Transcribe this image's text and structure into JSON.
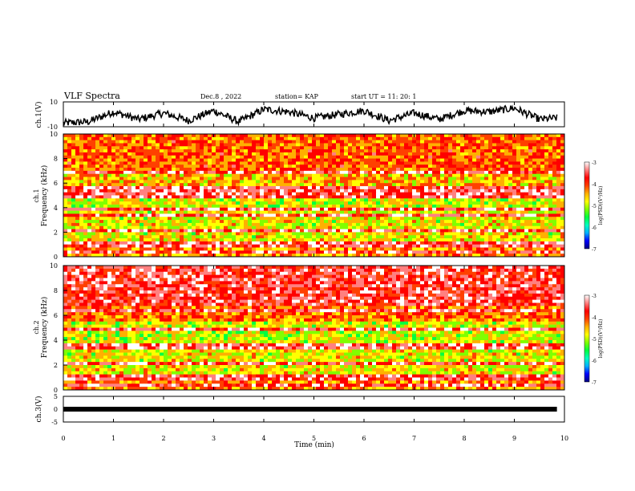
{
  "header": {
    "title": "VLF Spectra",
    "date": "Dec.8 , 2022",
    "station": "station= KAP",
    "start": "start UT =  11: 20: 1"
  },
  "colorbar": {
    "label": "log(PSD)(V²/Hz)",
    "ticks": [
      "-3",
      "-4",
      "-5",
      "-6",
      "-7"
    ],
    "colors": [
      "#000080",
      "#0000ff",
      "#00b0ff",
      "#00ffc0",
      "#00ff40",
      "#80ff00",
      "#ffff00",
      "#ffb000",
      "#ff4000",
      "#ff0000",
      "#ff8080",
      "#ffffff"
    ]
  },
  "chart_data": [
    {
      "type": "line",
      "ylabel": "ch.1(V)",
      "ylim": [
        -10,
        10
      ],
      "y_ticks": [
        "10",
        "-10"
      ],
      "x": [
        0,
        0.5,
        1,
        1.5,
        2,
        2.5,
        3,
        3.5,
        4,
        4.5,
        5,
        5.5,
        6,
        6.5,
        7,
        7.5,
        8,
        8.5,
        9,
        9.5,
        9.85
      ],
      "values": [
        -7,
        -6,
        2,
        -4,
        1,
        -5,
        3,
        -6,
        4,
        2,
        -3,
        0,
        3,
        -5,
        1,
        -4,
        3,
        2,
        5,
        -4,
        -3
      ]
    },
    {
      "type": "heatmap",
      "ylabel": "ch.1\nFrequency (kHz)",
      "ylim": [
        0,
        10
      ],
      "y_ticks": [
        "0",
        "2",
        "4",
        "6",
        "8",
        "10"
      ],
      "xlim": [
        0,
        9.85
      ],
      "bands_khz": [
        0.3,
        1.0,
        2.2,
        3.3,
        3.8,
        5.0,
        5.5,
        6.8
      ],
      "dominant_level": -4.2
    },
    {
      "type": "heatmap",
      "ylabel": "ch.2\nFrequency (kHz)",
      "ylim": [
        0,
        10
      ],
      "y_ticks": [
        "0",
        "2",
        "4",
        "6",
        "8",
        "10"
      ],
      "xlim": [
        0,
        9.85
      ],
      "bands_khz": [
        0.3,
        1.0,
        2.1,
        3.3,
        3.7,
        4.8,
        6.3
      ],
      "dominant_level": -3.7
    },
    {
      "type": "line",
      "ylabel": "ch.3(V)",
      "ylim": [
        -5,
        5
      ],
      "y_ticks": [
        "5",
        "0",
        "-5"
      ],
      "xlabel": "Time (min)",
      "xlim": [
        0,
        10
      ],
      "x_ticks": [
        "0",
        "1",
        "2",
        "3",
        "4",
        "5",
        "6",
        "7",
        "8",
        "9",
        "10"
      ],
      "x": [
        0,
        9.85
      ],
      "values": [
        0,
        0
      ]
    }
  ]
}
